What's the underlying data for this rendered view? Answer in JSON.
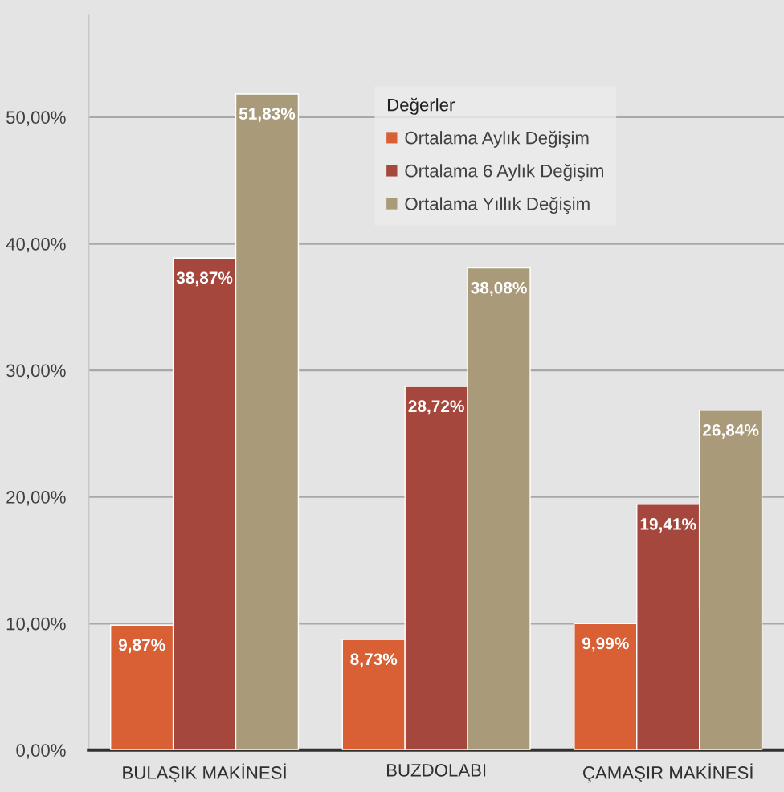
{
  "chart_data": {
    "type": "bar",
    "categories": [
      "BULAŞIK MAKİNESİ",
      "BUZDOLABI",
      "ÇAMAŞIR MAKİNESİ"
    ],
    "series": [
      {
        "name": "Ortalama Aylık Değişim",
        "color": "#d95f35",
        "values": [
          9.87,
          8.73,
          9.99
        ],
        "value_labels": [
          "9,87%",
          "8,73%",
          "9,99%"
        ]
      },
      {
        "name": "Ortalama 6 Aylık Değişim",
        "color": "#a5473c",
        "values": [
          38.87,
          28.72,
          19.41
        ],
        "value_labels": [
          "38,87%",
          "28,72%",
          "19,41%"
        ]
      },
      {
        "name": "Ortalama Yıllık Değişim",
        "color": "#a99a7a",
        "values": [
          51.83,
          38.08,
          26.84
        ],
        "value_labels": [
          "51,83%",
          "38,08%",
          "26,84%"
        ]
      }
    ],
    "legend_title": "Değerler",
    "legend": "top right",
    "grid": "y",
    "ylim": [
      0,
      58
    ],
    "yticks": [
      {
        "value": 0,
        "label": "0,00%"
      },
      {
        "value": 10,
        "label": "10,00%"
      },
      {
        "value": 20,
        "label": "20,00%"
      },
      {
        "value": 30,
        "label": "30,00%"
      },
      {
        "value": 40,
        "label": "40,00%"
      },
      {
        "value": 50,
        "label": "50,00%"
      }
    ]
  }
}
